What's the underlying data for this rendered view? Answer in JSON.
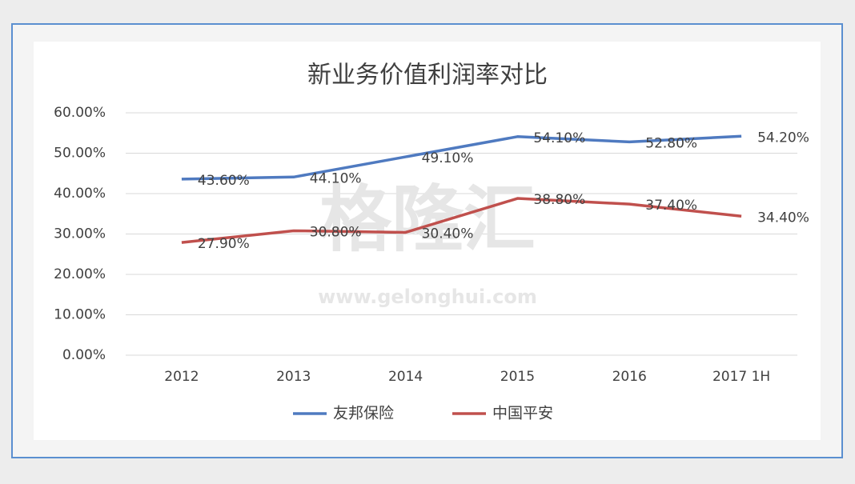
{
  "chart_data": {
    "type": "line",
    "title": "新业务价值利润率对比",
    "categories": [
      "2012",
      "2013",
      "2014",
      "2015",
      "2016",
      "2017 1H"
    ],
    "series": [
      {
        "name": "友邦保险",
        "color": "#4f7ac0",
        "values": [
          43.6,
          44.1,
          49.1,
          54.1,
          52.8,
          54.2
        ],
        "value_labels": [
          "43.60%",
          "44.10%",
          "49.10%",
          "54.10%",
          "52.80%",
          "54.20%"
        ]
      },
      {
        "name": "中国平安",
        "color": "#c0504d",
        "values": [
          27.9,
          30.8,
          30.4,
          38.8,
          37.4,
          34.4
        ],
        "value_labels": [
          "27.90%",
          "30.80%",
          "30.40%",
          "38.80%",
          "37.40%",
          "34.40%"
        ]
      }
    ],
    "ylim": [
      0,
      60
    ],
    "yticks": [
      {
        "value": 0,
        "label": "0.00%"
      },
      {
        "value": 10,
        "label": "10.00%"
      },
      {
        "value": 20,
        "label": "20.00%"
      },
      {
        "value": 30,
        "label": "30.00%"
      },
      {
        "value": 40,
        "label": "40.00%"
      },
      {
        "value": 50,
        "label": "50.00%"
      },
      {
        "value": 60,
        "label": "60.00%"
      }
    ],
    "grid": true,
    "legend": "bottom",
    "watermark": {
      "logo": "格隆汇",
      "url": "www.gelonghui.com"
    }
  }
}
